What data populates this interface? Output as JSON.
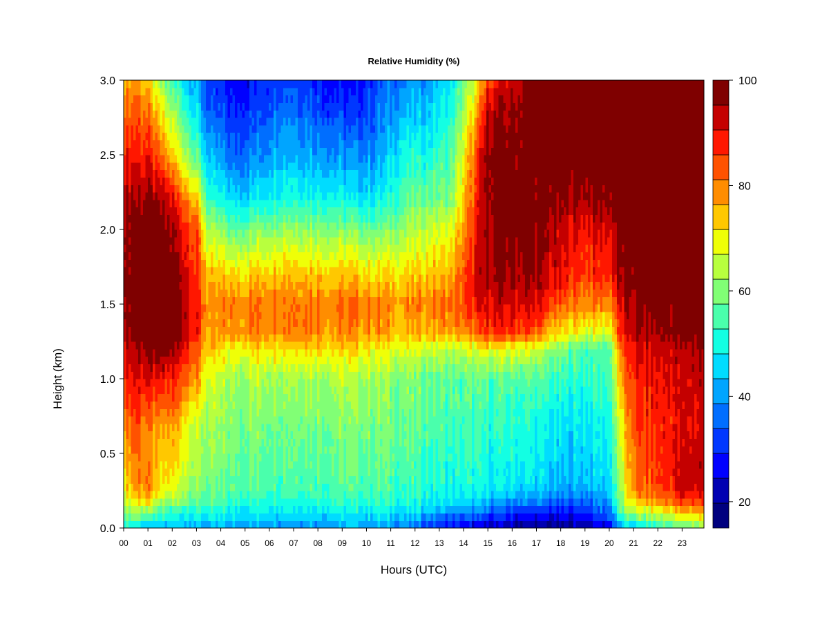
{
  "chart_data": {
    "type": "heatmap",
    "title": "Relative Humidity (%)",
    "xlabel": "Hours (UTC)",
    "ylabel": "Height (km)",
    "xlim": [
      0,
      23.9
    ],
    "ylim": [
      0,
      3.0
    ],
    "x_ticks": [
      "00",
      "01",
      "02",
      "03",
      "04",
      "05",
      "06",
      "07",
      "08",
      "09",
      "10",
      "11",
      "12",
      "13",
      "14",
      "15",
      "16",
      "17",
      "18",
      "19",
      "20",
      "21",
      "22",
      "23"
    ],
    "y_ticks": [
      "0.0",
      "0.5",
      "1.0",
      "1.5",
      "2.0",
      "2.5",
      "3.0"
    ],
    "colorbar": {
      "min": 15,
      "max": 100,
      "labels": [
        "20",
        "40",
        "60",
        "80",
        "100"
      ],
      "label_values": [
        20,
        40,
        60,
        80,
        100
      ],
      "levels": 17,
      "colors": [
        "#00007f",
        "#0000b2",
        "#0000ff",
        "#0037ff",
        "#006eff",
        "#00a5ff",
        "#00dcff",
        "#13ffe3",
        "#4affac",
        "#81ff75",
        "#b8ff3e",
        "#efff07",
        "#ffc800",
        "#ff8d00",
        "#ff5200",
        "#ff1700",
        "#c40000",
        "#7f0000"
      ]
    },
    "height_levels_km": [
      0.0,
      0.1,
      0.2,
      0.3,
      0.5,
      0.7,
      1.0,
      1.2,
      1.3,
      1.5,
      1.7,
      2.0,
      2.2,
      2.5,
      2.8,
      3.0
    ],
    "hour_columns": [
      0.0,
      0.5,
      1.0,
      1.5,
      2.0,
      2.5,
      3.0,
      3.5,
      4.5,
      5.5,
      6.5,
      7.5,
      8.5,
      9.5,
      10.5,
      11.5,
      12.5,
      13.5,
      14.5,
      15.0,
      16.0,
      17.0,
      17.5,
      18.0,
      19.0,
      20.0,
      20.5,
      21.0,
      22.0,
      23.0,
      23.9
    ],
    "relative_humidity_percent": [
      [
        52,
        60,
        68,
        72,
        75,
        80,
        88,
        92,
        96,
        98,
        98,
        97,
        95,
        88,
        82,
        78
      ],
      [
        48,
        62,
        74,
        80,
        82,
        86,
        92,
        96,
        99,
        100,
        100,
        99,
        96,
        90,
        84,
        78
      ],
      [
        42,
        58,
        76,
        80,
        78,
        80,
        90,
        98,
        100,
        100,
        100,
        100,
        97,
        88,
        80,
        72
      ],
      [
        42,
        52,
        66,
        70,
        72,
        76,
        88,
        98,
        100,
        100,
        100,
        99,
        94,
        82,
        70,
        62
      ],
      [
        42,
        52,
        64,
        70,
        74,
        78,
        88,
        96,
        98,
        99,
        98,
        96,
        90,
        74,
        62,
        54
      ],
      [
        42,
        52,
        62,
        66,
        70,
        72,
        84,
        92,
        96,
        96,
        94,
        90,
        82,
        66,
        54,
        48
      ],
      [
        42,
        50,
        58,
        62,
        64,
        66,
        78,
        84,
        88,
        88,
        86,
        84,
        74,
        56,
        46,
        42
      ],
      [
        42,
        50,
        56,
        58,
        60,
        62,
        66,
        72,
        76,
        78,
        74,
        62,
        52,
        42,
        34,
        30
      ],
      [
        40,
        48,
        54,
        56,
        58,
        60,
        62,
        70,
        78,
        80,
        72,
        58,
        46,
        36,
        30,
        26
      ],
      [
        40,
        48,
        54,
        56,
        58,
        60,
        64,
        72,
        80,
        82,
        74,
        60,
        48,
        38,
        32,
        28
      ],
      [
        40,
        48,
        54,
        56,
        58,
        60,
        64,
        72,
        80,
        82,
        76,
        62,
        52,
        44,
        38,
        34
      ],
      [
        40,
        48,
        54,
        56,
        58,
        60,
        64,
        74,
        82,
        82,
        76,
        62,
        52,
        42,
        36,
        32
      ],
      [
        40,
        48,
        54,
        56,
        58,
        60,
        64,
        72,
        78,
        80,
        74,
        60,
        50,
        40,
        32,
        28
      ],
      [
        40,
        48,
        54,
        56,
        58,
        60,
        64,
        72,
        78,
        82,
        74,
        60,
        48,
        38,
        30,
        26
      ],
      [
        40,
        48,
        54,
        56,
        58,
        60,
        62,
        70,
        78,
        80,
        72,
        58,
        48,
        40,
        36,
        34
      ],
      [
        38,
        46,
        52,
        54,
        56,
        58,
        60,
        68,
        74,
        78,
        72,
        62,
        56,
        50,
        42,
        38
      ],
      [
        30,
        44,
        50,
        52,
        54,
        56,
        58,
        66,
        76,
        80,
        74,
        66,
        58,
        50,
        44,
        40
      ],
      [
        26,
        38,
        48,
        50,
        52,
        54,
        56,
        64,
        76,
        82,
        76,
        68,
        60,
        56,
        50,
        48
      ],
      [
        24,
        36,
        46,
        50,
        52,
        54,
        56,
        66,
        80,
        88,
        90,
        88,
        86,
        82,
        74,
        66
      ],
      [
        22,
        34,
        44,
        48,
        50,
        52,
        56,
        70,
        86,
        92,
        95,
        96,
        98,
        98,
        94,
        86
      ],
      [
        20,
        30,
        42,
        48,
        50,
        52,
        56,
        68,
        86,
        92,
        96,
        98,
        100,
        98,
        96,
        92
      ],
      [
        18,
        28,
        40,
        46,
        48,
        50,
        56,
        66,
        82,
        92,
        96,
        98,
        99,
        100,
        100,
        100
      ],
      [
        18,
        26,
        38,
        44,
        46,
        48,
        54,
        62,
        74,
        86,
        92,
        95,
        97,
        100,
        100,
        100
      ],
      [
        18,
        26,
        36,
        42,
        44,
        46,
        52,
        58,
        70,
        82,
        90,
        92,
        96,
        100,
        100,
        100
      ],
      [
        20,
        30,
        38,
        44,
        46,
        48,
        52,
        56,
        68,
        80,
        86,
        90,
        96,
        100,
        100,
        100
      ],
      [
        24,
        36,
        42,
        46,
        48,
        50,
        54,
        56,
        66,
        80,
        88,
        92,
        98,
        100,
        100,
        100
      ],
      [
        40,
        56,
        62,
        64,
        66,
        70,
        76,
        82,
        88,
        92,
        96,
        98,
        100,
        100,
        100,
        100
      ],
      [
        46,
        62,
        76,
        80,
        82,
        84,
        88,
        90,
        94,
        96,
        98,
        100,
        100,
        100,
        100,
        100
      ],
      [
        50,
        66,
        82,
        86,
        86,
        88,
        90,
        92,
        96,
        98,
        100,
        100,
        100,
        100,
        100,
        100
      ],
      [
        56,
        72,
        88,
        92,
        92,
        90,
        92,
        94,
        98,
        100,
        100,
        100,
        100,
        100,
        100,
        100
      ],
      [
        60,
        76,
        90,
        94,
        94,
        92,
        94,
        96,
        98,
        100,
        100,
        100,
        100,
        100,
        100,
        100
      ]
    ],
    "grid": false,
    "legend": "colorbar-right"
  }
}
